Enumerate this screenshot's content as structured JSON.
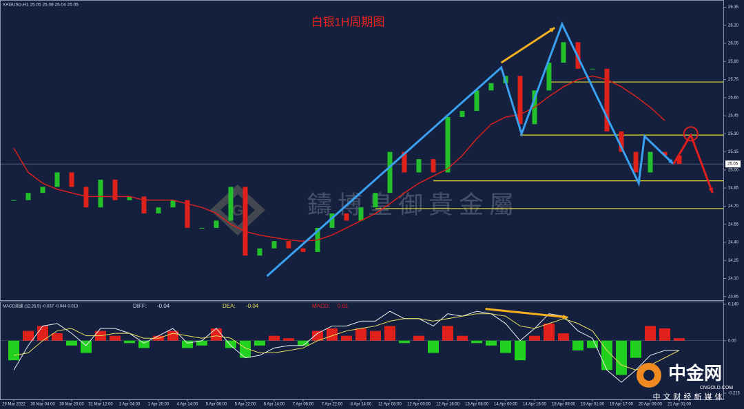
{
  "chart_data": [
    {
      "type": "candlestick",
      "title": "白银1H周期图",
      "header": "XAGUSD,H1  25.05 25.08 25.04 25.05",
      "categories": [
        "29 Mar 2022",
        null,
        "30 Mar 04:00",
        null,
        "30 Mar 20:00",
        null,
        "31 Mar 12:00",
        null,
        "1 Apr 04:00",
        null,
        "1 Apr 20:00",
        null,
        "4 Apr 14:00",
        null,
        "5 Apr 06:00",
        null,
        "5 Apr 22:00",
        null,
        "6 Apr 14:00",
        null,
        "7 Apr 06:00",
        null,
        "7 Apr 22:00",
        null,
        "8 Apr 14:00",
        null,
        "11 Apr 08:00",
        null,
        "12 Apr 00:00",
        null,
        "12 Apr 16:00",
        null,
        "13 Apr 08:00",
        null,
        "14 Apr 00:00",
        null,
        "14 Apr 16:00",
        null,
        "18 Apr 09:00",
        null,
        "19 Apr 01:00",
        null,
        "19 Apr 17:00",
        null,
        "20 Apr 09:00",
        null,
        "21 Apr 01:00"
      ],
      "values": [
        24.75,
        24.81,
        24.86,
        24.98,
        24.86,
        24.69,
        24.92,
        24.75,
        24.78,
        24.64,
        24.69,
        24.75,
        24.52,
        24.52,
        24.58,
        24.86,
        24.29,
        24.35,
        24.41,
        24.35,
        24.32,
        24.52,
        24.64,
        24.58,
        24.69,
        24.81,
        25.15,
        24.98,
        25.09,
        24.98,
        25.44,
        25.49,
        25.66,
        25.72,
        25.78,
        25.38,
        25.66,
        25.89,
        26.06,
        25.84,
        25.84,
        25.32,
        25.15,
        24.98,
        25.15,
        25.12,
        25.05
      ],
      "up_color": "#22c02a",
      "down_color": "#e0201a",
      "ma": {
        "color": "#d8201c",
        "values": [
          25.18,
          24.98,
          24.89,
          24.84,
          24.81,
          24.78,
          24.78,
          24.78,
          24.78,
          24.75,
          24.75,
          24.75,
          24.72,
          24.69,
          24.64,
          24.55,
          24.49,
          24.46,
          24.44,
          24.42,
          24.41,
          24.42,
          24.46,
          24.52,
          24.58,
          24.64,
          24.72,
          24.81,
          24.89,
          24.95,
          25.01,
          25.12,
          25.26,
          25.38,
          25.44,
          25.46,
          25.52,
          25.61,
          25.69,
          25.75,
          25.78,
          25.75,
          25.69,
          25.61,
          25.52,
          25.41,
          null
        ]
      },
      "last_price": 25.05,
      "ylim": [
        23.92,
        26.41
      ],
      "yticks": [
        26.35,
        {
          "value": 26.2,
          "label": "26.20"
        },
        26.05,
        {
          "value": 25.9,
          "label": "25.90"
        },
        25.75,
        {
          "value": 25.6,
          "label": "25.60"
        },
        25.45,
        {
          "value": 25.3,
          "label": "25.30"
        },
        25.15,
        {
          "value": 25,
          "label": "25.00"
        },
        24.85,
        {
          "value": 24.7,
          "label": "24.70"
        },
        24.55,
        {
          "value": 24.4,
          "label": "24.40"
        },
        24.25,
        {
          "value": 24.1,
          "label": "24.10"
        },
        23.95
      ],
      "levels": [
        {
          "value": 25.73,
          "from": 37
        },
        {
          "value": 25.29,
          "from": 35
        },
        {
          "value": 24.91,
          "from": 29
        },
        {
          "value": 24.68,
          "from": 25
        }
      ],
      "level_color": "#e8e030",
      "arrows": [
        {
          "color": "#3aa0f0",
          "x": [
            17.5,
            33.7,
            35.1,
            37.9,
            43.2,
            43.6,
            45.6
          ],
          "values": [
            24.12,
            25.85,
            25.3,
            26.21,
            24.89,
            25.28,
            25.05
          ]
        },
        {
          "color": "#f5b020",
          "x": [
            33.7,
            37.4
          ],
          "values": [
            25.89,
            26.18
          ]
        },
        {
          "color": "#e02020",
          "x": [
            45.6,
            46.8,
            48.3
          ],
          "values": [
            25.05,
            25.29,
            24.81
          ]
        }
      ],
      "circle": {
        "x": 46.8,
        "value": 25.3,
        "color": "#e02020"
      }
    },
    {
      "type": "macd",
      "title": "MACD双速 (12,26,9) -0.037 -0.044 0.013",
      "diff_label": "DIFF:",
      "diff": -0.04,
      "dea_label": "DEA:",
      "dea": -0.04,
      "macd_label": "MACD:",
      "macd": 0.01,
      "values": [
        -0.08,
        0.04,
        0.06,
        0.03,
        -0.02,
        -0.05,
        0.04,
        0.02,
        -0.01,
        -0.03,
        0.02,
        0.04,
        -0.03,
        -0.02,
        0.05,
        -0.03,
        -0.07,
        -0.02,
        0.02,
        0.01,
        -0.02,
        0.04,
        0.05,
        0.02,
        0.05,
        0.04,
        0.06,
        -0.01,
        0.02,
        -0.05,
        0.06,
        0.02,
        -0.01,
        -0.02,
        -0.05,
        -0.08,
        0.02,
        0.07,
        0.03,
        -0.04,
        -0.03,
        -0.12,
        -0.14,
        -0.07,
        0.06,
        0.05,
        0.01
      ],
      "up_color": "#e0201a",
      "down_color": "#22d020",
      "series": [
        {
          "color": "#f0f0f0",
          "values": [
            -0.12,
            -0.02,
            0.06,
            0.07,
            0.03,
            -0.02,
            0.05,
            0.05,
            0.03,
            -0.01,
            0.02,
            0.05,
            -0.01,
            0,
            0.05,
            -0.02,
            -0.07,
            -0.06,
            -0.03,
            -0.02,
            -0.02,
            0.03,
            0.06,
            0.06,
            0.08,
            0.08,
            0.12,
            0.09,
            0.09,
            0.06,
            0.11,
            0.1,
            0.12,
            0.11,
            0.07,
            0,
            0.05,
            0.11,
            0.1,
            0.04,
            0.01,
            -0.12,
            -0.17,
            -0.12,
            -0.06,
            -0.04,
            -0.04
          ]
        },
        {
          "color": "#e8e060",
          "values": [
            -0.06,
            -0.05,
            0,
            0.04,
            0.05,
            0.02,
            0.02,
            0.03,
            0.03,
            0.01,
            0.01,
            0.03,
            0.02,
            0.01,
            0.02,
            0.01,
            -0.03,
            -0.05,
            -0.05,
            -0.04,
            -0.03,
            0,
            0.02,
            0.04,
            0.05,
            0.06,
            0.08,
            0.09,
            0.09,
            0.08,
            0.09,
            0.1,
            0.11,
            0.11,
            0.1,
            0.06,
            0.05,
            0.07,
            0.09,
            0.07,
            0.04,
            -0.04,
            -0.1,
            -0.12,
            -0.1,
            -0.07,
            -0.04
          ]
        }
      ],
      "ylim": [
        -0.24,
        0.157
      ],
      "yticks": [
        0.149,
        {
          "value": 0,
          "label": "0.00"
        },
        -0.215
      ],
      "arrows": [
        {
          "color": "#f5b020",
          "x": [
            32.6,
            38.3
          ],
          "values": [
            0.13,
            0.095
          ]
        }
      ]
    }
  ],
  "watermark": "鑄博皇御貴金屬",
  "logo": {
    "name": "中金网",
    "site": "CNGOLD.COM",
    "slogan": "中文财经新媒体"
  }
}
